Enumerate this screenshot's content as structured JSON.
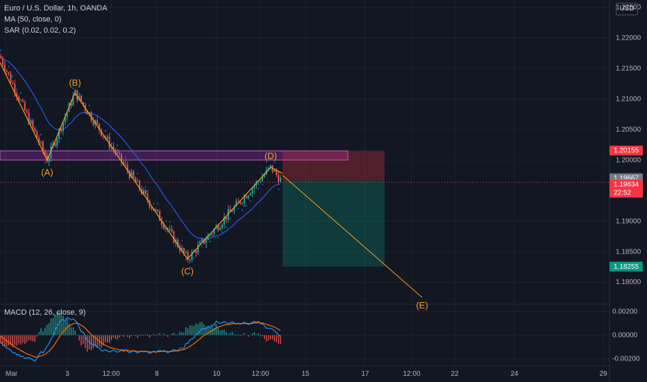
{
  "legend": {
    "symbol": "Euro / U.S. Dollar, 1h, OANDA",
    "ma": "MA (50, close, 0)",
    "sar": "SAR (0.02, 0.02, 0.2)",
    "macd": "MACD (12, 26, close, 9)"
  },
  "currency": "USD",
  "price_axis": [
    "1.22500",
    "1.22000",
    "1.21500",
    "1.21000",
    "1.20500",
    "1.20000",
    "1.19000",
    "1.18500",
    "1.18000"
  ],
  "macd_axis": [
    "0.00200",
    "0.00000",
    "-0.00200"
  ],
  "time_axis": [
    "Mar",
    "3",
    "12:00",
    "8",
    "10",
    "12:00",
    "15",
    "17",
    "12:00",
    "22",
    "24",
    "29"
  ],
  "price_tags": [
    {
      "text": "1.20155",
      "color": "#f23645"
    },
    {
      "text": "1.19667",
      "color": "#787b86"
    },
    {
      "text": "1.19634",
      "color": "#f23645",
      "sub": "22:52"
    },
    {
      "text": "1.18255",
      "color": "#089981"
    }
  ],
  "wave_labels": [
    "(A)",
    "(B)",
    "(C)",
    "(D)",
    "(E)"
  ],
  "colors": {
    "background": "#131722",
    "grid": "#1e222d",
    "bull": "#26a69a",
    "bear": "#ef5350",
    "ma": "#2962ff",
    "sar": "#2962ff",
    "macd_line": "#2196f3",
    "signal_line": "#ff6d00",
    "wave": "#f7a21b",
    "zone": "#9c27b0",
    "stop_zone": "#f23645",
    "target_zone": "#089981"
  },
  "chart_data": {
    "type": "candlestick",
    "instrument": "Euro / U.S. Dollar",
    "timeframe": "1h",
    "waves": [
      {
        "label": "(A)",
        "price": 1.2
      },
      {
        "label": "(B)",
        "price": 1.211
      },
      {
        "label": "(C)",
        "price": 1.1838
      },
      {
        "label": "(D)",
        "price": 1.1988
      },
      {
        "label": "(E)",
        "price": 1.1775
      }
    ],
    "resistance_zone": [
      1.2,
      1.2015
    ],
    "trade": {
      "entry": 1.19667,
      "stop": 1.20155,
      "target": 1.18255
    },
    "last_price": 1.19634,
    "y_range": [
      1.1765,
      1.2262
    ],
    "macd_range": [
      -0.0026,
      0.0026
    ]
  }
}
